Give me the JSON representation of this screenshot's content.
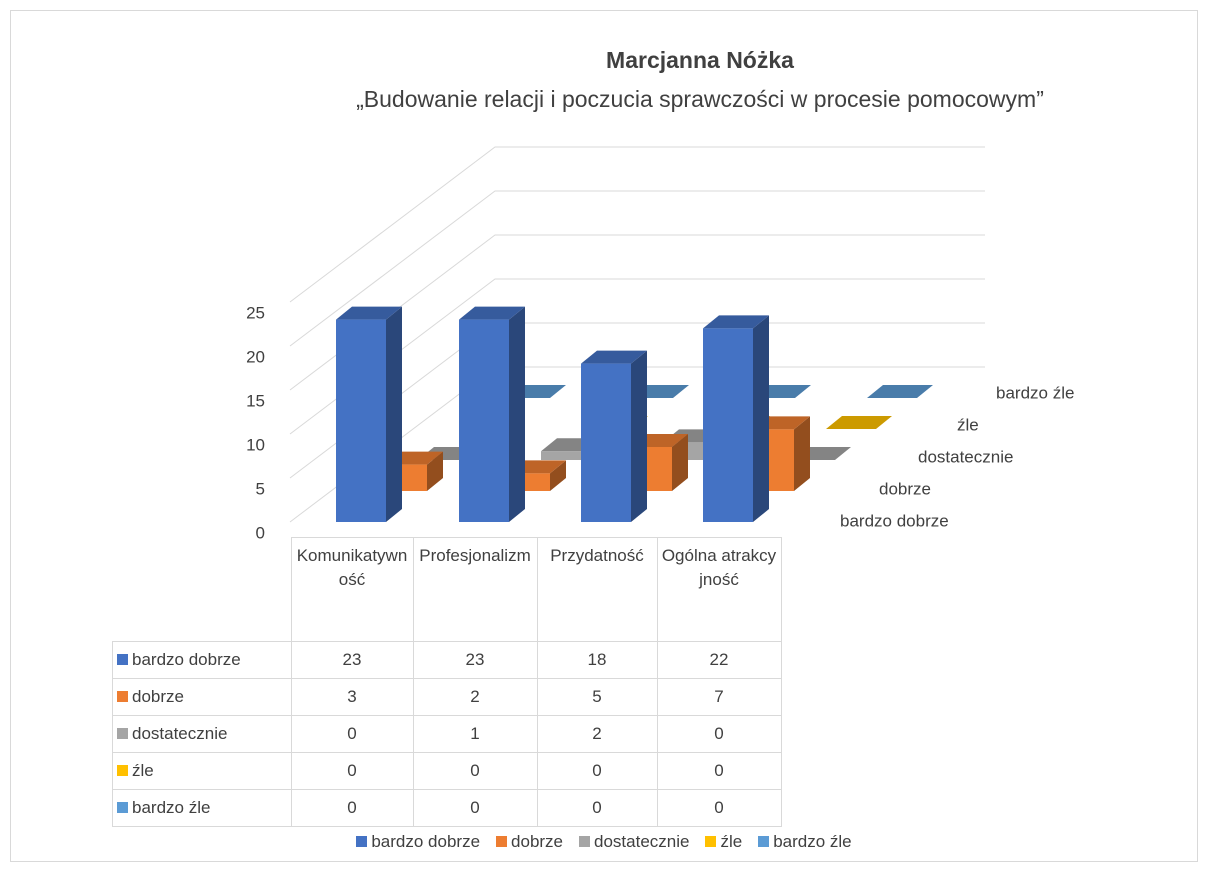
{
  "chart_data": {
    "type": "bar3d",
    "title": "Marcjanna Nóżka",
    "subtitle": "„Budowanie relacji i poczucia sprawczości w procesie pomocowym”",
    "categories": [
      "Komunikatywność",
      "Profesjonalizm",
      "Przydatność",
      "Ogólna atrakcyjność"
    ],
    "series": [
      {
        "name": "bardzo dobrze",
        "color": "#4472c4",
        "values": [
          23,
          23,
          18,
          22
        ]
      },
      {
        "name": "dobrze",
        "color": "#ed7d31",
        "values": [
          3,
          2,
          5,
          7
        ]
      },
      {
        "name": "dostatecznie",
        "color": "#a5a5a5",
        "values": [
          0,
          1,
          2,
          0
        ]
      },
      {
        "name": "źle",
        "color": "#ffc000",
        "values": [
          0,
          0,
          0,
          0
        ]
      },
      {
        "name": "bardzo źle",
        "color": "#5b9bd5",
        "values": [
          0,
          0,
          0,
          0
        ]
      }
    ],
    "ylim": [
      0,
      25
    ],
    "yticks": [
      0,
      5,
      10,
      15,
      20,
      25
    ],
    "grid": true
  }
}
